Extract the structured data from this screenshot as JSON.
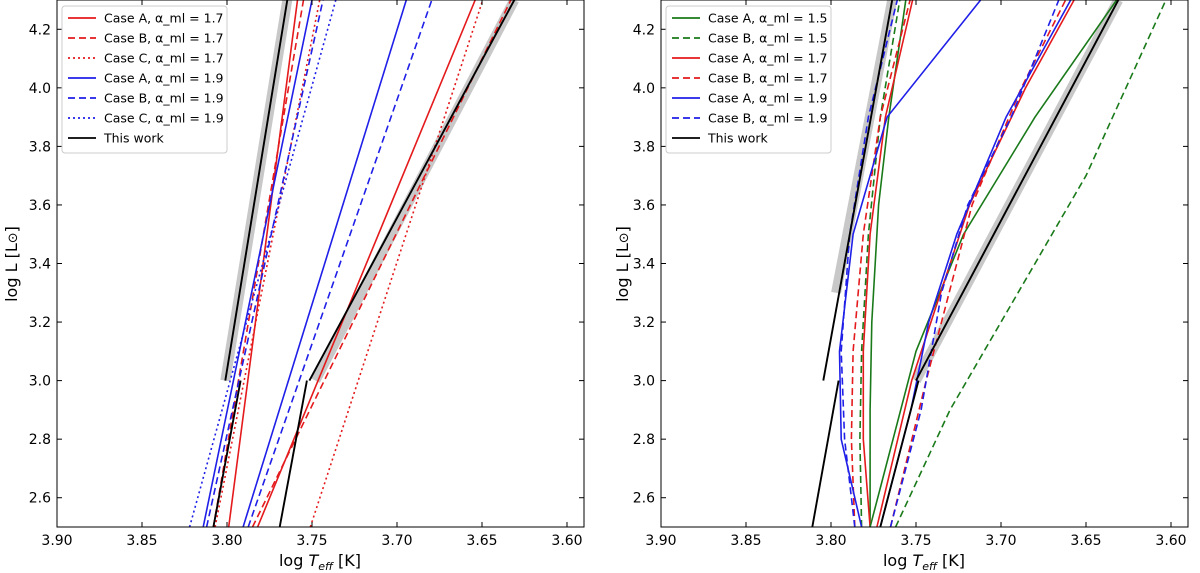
{
  "chart_data": [
    {
      "type": "line",
      "panel": "left",
      "xlabel": "log T_eff [K]",
      "ylabel": "log L [L⊙]",
      "xlim": [
        3.9,
        3.59
      ],
      "ylim": [
        2.5,
        4.3
      ],
      "xticks": [
        "3.90",
        "3.85",
        "3.80",
        "3.75",
        "3.70",
        "3.65",
        "3.60"
      ],
      "yticks": [
        "2.6",
        "2.8",
        "3.0",
        "3.2",
        "3.4",
        "3.6",
        "3.8",
        "4.0",
        "4.2"
      ],
      "legend_position": "top-left",
      "legend": [
        {
          "label": "Case A, α_ml = 1.7",
          "color": "#e41a1c",
          "dash": "solid"
        },
        {
          "label": "Case B, α_ml = 1.7",
          "color": "#e41a1c",
          "dash": "dashed"
        },
        {
          "label": "Case C, α_ml = 1.7",
          "color": "#e41a1c",
          "dash": "dotted"
        },
        {
          "label": "Case A, α_ml = 1.9",
          "color": "#1f1fe8",
          "dash": "solid"
        },
        {
          "label": "Case B, α_ml = 1.9",
          "color": "#1f1fe8",
          "dash": "dashed"
        },
        {
          "label": "Case C, α_ml = 1.9",
          "color": "#1f1fe8",
          "dash": "dotted"
        },
        {
          "label": "This work",
          "color": "#000000",
          "dash": "solid"
        }
      ],
      "bands": [
        {
          "name": "blue-edge-band",
          "points": [
            [
              3.801,
              3.0
            ],
            [
              3.7645,
              4.3
            ]
          ]
        },
        {
          "name": "red-edge-band",
          "points": [
            [
              3.748,
              3.0
            ],
            [
              3.631,
              4.3
            ]
          ]
        }
      ],
      "series": [
        {
          "name": "Case A 1.7 blue edge",
          "color": "#e41a1c",
          "dash": "solid",
          "points": [
            [
              3.799,
              2.5
            ],
            [
              3.7585,
              4.3
            ]
          ]
        },
        {
          "name": "Case B 1.7 blue edge",
          "color": "#e41a1c",
          "dash": "dashed",
          "points": [
            [
              3.808,
              2.5
            ],
            [
              3.755,
              4.3
            ]
          ]
        },
        {
          "name": "Case C 1.7 blue edge",
          "color": "#e41a1c",
          "dash": "dotted",
          "points": [
            [
              3.807,
              2.5
            ],
            [
              3.7455,
              4.3
            ]
          ]
        },
        {
          "name": "Case A 1.9 blue edge",
          "color": "#1f1fe8",
          "dash": "solid",
          "points": [
            [
              3.814,
              2.5
            ],
            [
              3.75,
              4.3
            ]
          ]
        },
        {
          "name": "Case B 1.9 blue edge",
          "color": "#1f1fe8",
          "dash": "dashed",
          "points": [
            [
              3.812,
              2.5
            ],
            [
              3.7435,
              4.3
            ]
          ]
        },
        {
          "name": "Case C 1.9 blue edge",
          "color": "#1f1fe8",
          "dash": "dotted",
          "points": [
            [
              3.822,
              2.5
            ],
            [
              3.736,
              4.3
            ]
          ]
        },
        {
          "name": "Case A 1.7 red edge",
          "color": "#e41a1c",
          "dash": "solid",
          "points": [
            [
              3.782,
              2.5
            ],
            [
              3.654,
              4.3
            ]
          ]
        },
        {
          "name": "Case B 1.7 red edge",
          "color": "#e41a1c",
          "dash": "dashed",
          "points": [
            [
              3.785,
              2.5
            ],
            [
              3.633,
              4.3
            ]
          ]
        },
        {
          "name": "Case C 1.7 red edge",
          "color": "#e41a1c",
          "dash": "dotted",
          "points": [
            [
              3.751,
              2.5
            ],
            [
              3.6495,
              4.3
            ]
          ]
        },
        {
          "name": "Case A 1.9 red edge",
          "color": "#1f1fe8",
          "dash": "solid",
          "points": [
            [
              3.7905,
              2.5
            ],
            [
              3.6945,
              4.3
            ]
          ]
        },
        {
          "name": "Case B 1.9 red edge",
          "color": "#1f1fe8",
          "dash": "dashed",
          "points": [
            [
              3.7875,
              2.5
            ],
            [
              3.6795,
              4.3
            ]
          ]
        },
        {
          "name": "This work blue edge (upper)",
          "color": "#000000",
          "dash": "solid",
          "points": [
            [
              3.801,
              3.0
            ],
            [
              3.7645,
              4.3
            ]
          ]
        },
        {
          "name": "This work blue edge (lower)",
          "color": "#000000",
          "dash": "solid",
          "points": [
            [
              3.808,
              2.5
            ],
            [
              3.792,
              3.0
            ]
          ]
        },
        {
          "name": "This work red edge (upper)",
          "color": "#000000",
          "dash": "solid",
          "points": [
            [
              3.7515,
              3.0
            ],
            [
              3.631,
              4.3
            ]
          ]
        },
        {
          "name": "This work red edge (lower)",
          "color": "#000000",
          "dash": "solid",
          "points": [
            [
              3.769,
              2.5
            ],
            [
              3.753,
              3.0
            ]
          ]
        }
      ]
    },
    {
      "type": "line",
      "panel": "right",
      "xlabel": "log T_eff [K]",
      "ylabel": "log L [L⊙]",
      "xlim": [
        3.9,
        3.59
      ],
      "ylim": [
        2.5,
        4.3
      ],
      "xticks": [
        "3.90",
        "3.85",
        "3.80",
        "3.75",
        "3.70",
        "3.65",
        "3.60"
      ],
      "yticks": [
        "2.6",
        "2.8",
        "3.0",
        "3.2",
        "3.4",
        "3.6",
        "3.8",
        "4.0",
        "4.2"
      ],
      "legend_position": "top-left",
      "legend": [
        {
          "label": "Case A, α_ml = 1.5",
          "color": "#1a7a1a",
          "dash": "solid"
        },
        {
          "label": "Case B, α_ml = 1.5",
          "color": "#1a7a1a",
          "dash": "dashed"
        },
        {
          "label": "Case A, α_ml = 1.7",
          "color": "#e41a1c",
          "dash": "solid"
        },
        {
          "label": "Case B, α_ml = 1.7",
          "color": "#e41a1c",
          "dash": "dashed"
        },
        {
          "label": "Case A, α_ml = 1.9",
          "color": "#1f1fe8",
          "dash": "solid"
        },
        {
          "label": "Case B, α_ml = 1.9",
          "color": "#1f1fe8",
          "dash": "dashed"
        },
        {
          "label": "This work",
          "color": "#000000",
          "dash": "solid"
        }
      ],
      "bands": [
        {
          "name": "blue-edge-band",
          "points": [
            [
              3.797,
              3.3
            ],
            [
              3.764,
              4.3
            ]
          ]
        },
        {
          "name": "red-edge-band",
          "points": [
            [
              3.75,
              3.0
            ],
            [
              3.631,
              4.3
            ]
          ]
        }
      ],
      "series": [
        {
          "name": "Case A 1.5 blue edge",
          "color": "#1a7a1a",
          "dash": "solid",
          "points": [
            [
              3.777,
              2.5
            ],
            [
              3.777,
              2.9
            ],
            [
              3.776,
              3.2
            ],
            [
              3.772,
              3.6
            ],
            [
              3.766,
              3.9
            ],
            [
              3.756,
              4.3
            ]
          ]
        },
        {
          "name": "Case B 1.5 blue edge",
          "color": "#1a7a1a",
          "dash": "dashed",
          "points": [
            [
              3.782,
              2.5
            ],
            [
              3.783,
              2.8
            ],
            [
              3.782,
              3.1
            ],
            [
              3.778,
              3.5
            ],
            [
              3.771,
              3.9
            ],
            [
              3.7595,
              4.3
            ]
          ]
        },
        {
          "name": "Case A 1.7 blue edge",
          "color": "#e41a1c",
          "dash": "solid",
          "points": [
            [
              3.777,
              2.5
            ],
            [
              3.781,
              2.8
            ],
            [
              3.781,
              3.1
            ],
            [
              3.777,
              3.5
            ],
            [
              3.768,
              3.9
            ],
            [
              3.752,
              4.3
            ]
          ]
        },
        {
          "name": "Case B 1.7 blue edge",
          "color": "#e41a1c",
          "dash": "dashed",
          "points": [
            [
              3.786,
              2.5
            ],
            [
              3.788,
              2.8
            ],
            [
              3.787,
              3.1
            ],
            [
              3.781,
              3.5
            ],
            [
              3.771,
              3.9
            ],
            [
              3.7535,
              4.3
            ]
          ]
        },
        {
          "name": "Case A 1.9 blue edge",
          "color": "#1f1fe8",
          "dash": "solid",
          "points": [
            [
              3.782,
              2.5
            ],
            [
              3.794,
              2.8
            ],
            [
              3.795,
              3.1
            ],
            [
              3.787,
              3.5
            ],
            [
              3.767,
              3.9
            ],
            [
              3.712,
              4.3
            ]
          ]
        },
        {
          "name": "Case B 1.9 blue edge",
          "color": "#1f1fe8",
          "dash": "dashed",
          "points": [
            [
              3.786,
              2.5
            ],
            [
              3.792,
              2.8
            ],
            [
              3.794,
              3.1
            ],
            [
              3.789,
              3.5
            ],
            [
              3.778,
              3.9
            ],
            [
              3.761,
              4.3
            ]
          ]
        },
        {
          "name": "Case A 1.5 red edge",
          "color": "#1a7a1a",
          "dash": "solid",
          "points": [
            [
              3.777,
              2.5
            ],
            [
              3.75,
              3.1
            ],
            [
              3.722,
              3.5
            ],
            [
              3.68,
              3.9
            ],
            [
              3.632,
              4.3
            ]
          ]
        },
        {
          "name": "Case B 1.5 red edge",
          "color": "#1a7a1a",
          "dash": "dashed",
          "points": [
            [
              3.762,
              2.5
            ],
            [
              3.73,
              2.9
            ],
            [
              3.69,
              3.3
            ],
            [
              3.65,
              3.7
            ],
            [
              3.603,
              4.3
            ]
          ]
        },
        {
          "name": "Case A 1.7 red edge",
          "color": "#e41a1c",
          "dash": "solid",
          "points": [
            [
              3.773,
              2.5
            ],
            [
              3.7525,
              3.0
            ],
            [
              3.7185,
              3.6
            ],
            [
              3.6855,
              4.0
            ],
            [
              3.657,
              4.3
            ]
          ]
        },
        {
          "name": "Case B 1.7 red edge",
          "color": "#e41a1c",
          "dash": "dashed",
          "points": [
            [
              3.765,
              2.5
            ],
            [
              3.744,
              3.0
            ],
            [
              3.717,
              3.6
            ],
            [
              3.688,
              4.0
            ],
            [
              3.662,
              4.3
            ]
          ]
        },
        {
          "name": "Case A 1.9 red edge",
          "color": "#1f1fe8",
          "dash": "solid",
          "points": [
            [
              3.771,
              2.5
            ],
            [
              3.753,
              2.9
            ],
            [
              3.7425,
              3.2
            ],
            [
              3.726,
              3.5
            ],
            [
              3.697,
              3.9
            ],
            [
              3.659,
              4.3
            ]
          ]
        },
        {
          "name": "Case B 1.9 red edge",
          "color": "#1f1fe8",
          "dash": "dashed",
          "points": [
            [
              3.765,
              2.5
            ],
            [
              3.747,
              2.9
            ],
            [
              3.735,
              3.3
            ],
            [
              3.7195,
              3.6
            ],
            [
              3.694,
              3.9
            ],
            [
              3.666,
              4.3
            ]
          ]
        },
        {
          "name": "This work blue edge (upper)",
          "color": "#000000",
          "dash": "solid",
          "points": [
            [
              3.8045,
              3.0
            ],
            [
              3.764,
              4.3
            ]
          ]
        },
        {
          "name": "This work blue edge (lower)",
          "color": "#000000",
          "dash": "solid",
          "points": [
            [
              3.811,
              2.5
            ],
            [
              3.7955,
              3.0
            ]
          ]
        },
        {
          "name": "This work red edge (upper)",
          "color": "#000000",
          "dash": "solid",
          "points": [
            [
              3.75,
              3.0
            ],
            [
              3.631,
              4.3
            ]
          ]
        },
        {
          "name": "This work red edge (lower)",
          "color": "#000000",
          "dash": "solid",
          "points": [
            [
              3.771,
              2.5
            ],
            [
              3.7485,
              3.0
            ]
          ]
        }
      ]
    }
  ]
}
